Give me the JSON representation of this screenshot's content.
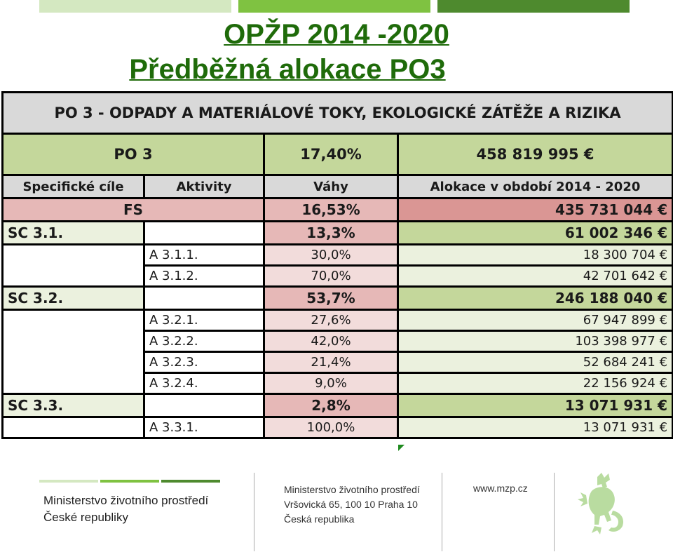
{
  "title_line1": "OPŽP 2014 -2020",
  "title_line2": "Předběžná alokace PO3",
  "table": {
    "header": "PO 3 - ODPADY A MATERIÁLOVÉ TOKY, EKOLOGICKÉ ZÁTĚŽE A RIZIKA",
    "po_label": "PO 3",
    "po_weight": "17,40%",
    "po_amount": "458 819 995 €",
    "columns": [
      "Specifické cíle",
      "Aktivity",
      "Váhy",
      "Alokace v období 2014 - 2020"
    ],
    "fs": {
      "label": "FS",
      "weight": "16,53%",
      "amount": "435 731 044 €"
    },
    "sc1": {
      "label": "SC 3.1.",
      "weight": "13,3%",
      "amount": "61 002 346 €",
      "activities": [
        {
          "label": "A 3.1.1.",
          "weight": "30,0%",
          "amount": "18 300 704 €"
        },
        {
          "label": "A 3.1.2.",
          "weight": "70,0%",
          "amount": "42 701 642 €"
        }
      ]
    },
    "sc2": {
      "label": "SC 3.2.",
      "weight": "53,7%",
      "amount": "246 188 040 €",
      "activities": [
        {
          "label": "A 3.2.1.",
          "weight": "27,6%",
          "amount": "67 947 899 €"
        },
        {
          "label": "A 3.2.2.",
          "weight": "42,0%",
          "amount": "103 398 977 €"
        },
        {
          "label": "A 3.2.3.",
          "weight": "21,4%",
          "amount": "52 684 241 €"
        },
        {
          "label": "A 3.2.4.",
          "weight": "9,0%",
          "amount": "22 156 924 €"
        }
      ]
    },
    "sc3": {
      "label": "SC 3.3.",
      "weight": "2,8%",
      "amount": "13 071 931 €",
      "activities": [
        {
          "label": "A 3.3.1.",
          "weight": "100,0%",
          "amount": "13 071 931 €"
        }
      ]
    }
  },
  "footer": {
    "org_line1": "Ministerstvo životního prostředí",
    "org_line2": "České republiky",
    "addr_line1": "Ministerstvo životního prostředí",
    "addr_line2": "Vršovická 65, 100 10  Praha 10",
    "addr_line3": "Česká republika",
    "web": "www.mzp.cz",
    "emblem_icon": "czech-lion-emblem-icon"
  },
  "colors": {
    "title_green": "#1f6b0a",
    "po_green": "#c4d79b",
    "fs_red": "#da9694",
    "header_gray": "#d9d9d9"
  }
}
